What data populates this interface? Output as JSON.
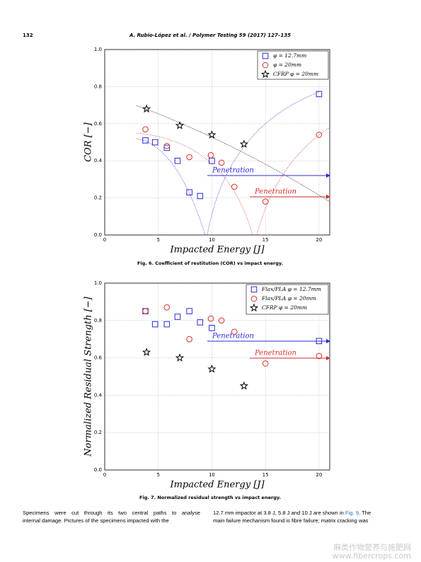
{
  "header": {
    "page": "132",
    "citation": "A. Rubio-López et al. / Polymer Testing 59 (2017) 127–135"
  },
  "chart_data": [
    {
      "type": "scatter",
      "x_label": "Impacted Energy [J]",
      "y_label": "COR [−]",
      "xlim": [
        0,
        21
      ],
      "ylim": [
        0,
        1
      ],
      "xticks": [
        0,
        5,
        10,
        15,
        20
      ],
      "yticks": [
        {
          "value": 0,
          "label": "0.0"
        },
        0.2,
        0.4,
        0.6,
        0.8,
        {
          "value": 1,
          "label": "1.0"
        }
      ],
      "grid": true,
      "legend": "upper right",
      "series": [
        {
          "name": "φ = 12.7mm",
          "color": "#2b2bd9",
          "marker": "square",
          "x": [
            3.8,
            4.7,
            5.8,
            6.8,
            7.9,
            8.9,
            10,
            20
          ],
          "values": [
            0.51,
            0.5,
            0.47,
            0.4,
            0.23,
            0.21,
            0.4,
            0.76
          ]
        },
        {
          "name": "φ = 20mm",
          "color": "#d93030",
          "marker": "circle",
          "x": [
            3.8,
            5.8,
            7.9,
            9.9,
            10.9,
            12.1,
            15,
            20
          ],
          "values": [
            0.57,
            0.48,
            0.42,
            0.43,
            0.39,
            0.26,
            0.18,
            0.54
          ]
        },
        {
          "name": "CFRP φ = 20mm",
          "color": "#000000",
          "marker": "star",
          "x": [
            3.9,
            7,
            10,
            13
          ],
          "values": [
            0.68,
            0.59,
            0.54,
            0.49
          ]
        }
      ],
      "annotations": [
        {
          "text": "Penetration",
          "color": "#2b2bd9"
        },
        {
          "text": "Penetration",
          "color": "#d93030"
        }
      ],
      "caption": "Fig. 6. Coefficient of restitution (COR) vs impact energy."
    },
    {
      "type": "scatter",
      "x_label": "Impacted Energy [J]",
      "y_label": "Normalized Residual Strength [−]",
      "xlim": [
        0,
        21
      ],
      "ylim": [
        0,
        1
      ],
      "xticks": [
        0,
        5,
        10,
        15,
        20
      ],
      "yticks": [
        {
          "value": 0,
          "label": "0.0"
        },
        0.2,
        0.4,
        0.6,
        0.8,
        {
          "value": 1,
          "label": "1.0"
        }
      ],
      "grid": true,
      "legend": "upper right",
      "series": [
        {
          "name": "Flax/PLA φ = 12.7mm",
          "color": "#2b2bd9",
          "marker": "square",
          "x": [
            3.8,
            4.7,
            5.8,
            6.8,
            7.9,
            8.9,
            10,
            20
          ],
          "values": [
            0.85,
            0.78,
            0.78,
            0.82,
            0.85,
            0.79,
            0.76,
            0.69
          ]
        },
        {
          "name": "Flax/PLA φ = 20mm",
          "color": "#d93030",
          "marker": "circle",
          "x": [
            3.8,
            5.8,
            7.9,
            9.9,
            10.9,
            12.1,
            15,
            20
          ],
          "values": [
            0.85,
            0.87,
            0.7,
            0.81,
            0.8,
            0.74,
            0.57,
            0.61
          ]
        },
        {
          "name": "CFRP φ = 20mm",
          "color": "#000000",
          "marker": "star",
          "x": [
            3.9,
            7,
            10,
            13
          ],
          "values": [
            0.63,
            0.6,
            0.54,
            0.45
          ]
        }
      ],
      "annotations": [
        {
          "text": "Penetration",
          "color": "#2b2bd9"
        },
        {
          "text": "Penetration",
          "color": "#d93030"
        }
      ],
      "caption": "Fig. 7. Normalized residual strength vs impact energy."
    }
  ],
  "body": {
    "left": [
      "Specimens were cut through its two central paths to analyse",
      "internal damage. Pictures of the specimens impacted with the"
    ],
    "right_1": "12.7 mm impactor at 3.8 J, 5.8 J and 10 J are shown in",
    "right_link": "Fig. 9",
    "right_2": ". The",
    "right_3": "main failure mechanism found is fibre failure; matrix cracking was"
  },
  "watermark": [
    "麻类作物营养与施肥网",
    "www.fibercrops.com"
  ]
}
